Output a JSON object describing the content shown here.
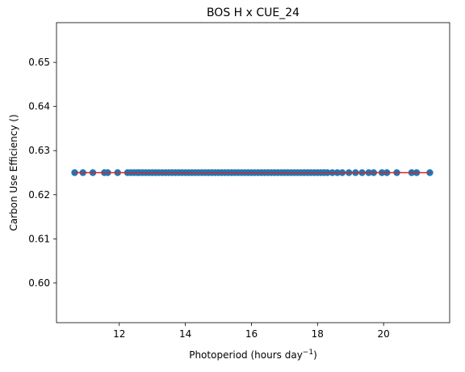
{
  "chart_data": {
    "type": "scatter",
    "title": "BOS H x CUE_24",
    "xlabel_main": "Photoperiod (hours day",
    "xlabel_sup": "−1",
    "xlabel_end": ")",
    "ylabel": "Carbon Use Efficiency ()",
    "xlim": [
      10.1,
      22.0
    ],
    "ylim": [
      0.591,
      0.659
    ],
    "xticks": [
      12,
      14,
      16,
      18,
      20
    ],
    "yticks": [
      0.6,
      0.61,
      0.62,
      0.63,
      0.64,
      0.65
    ],
    "grid": false,
    "legend": "none",
    "colors": {
      "points": "#1f77b4",
      "fit_line": "#d62728"
    },
    "series": [
      {
        "values": [
          [
            10.65,
            0.625
          ],
          [
            10.9,
            0.625
          ],
          [
            11.2,
            0.625
          ],
          [
            11.55,
            0.625
          ],
          [
            11.65,
            0.625
          ],
          [
            11.95,
            0.625
          ],
          [
            12.25,
            0.625
          ],
          [
            12.35,
            0.625
          ],
          [
            12.45,
            0.625
          ],
          [
            12.55,
            0.625
          ],
          [
            12.6,
            0.625
          ],
          [
            12.7,
            0.625
          ],
          [
            12.8,
            0.625
          ],
          [
            12.9,
            0.625
          ],
          [
            13.0,
            0.625
          ],
          [
            13.1,
            0.625
          ],
          [
            13.2,
            0.625
          ],
          [
            13.3,
            0.625
          ],
          [
            13.4,
            0.625
          ],
          [
            13.5,
            0.625
          ],
          [
            13.6,
            0.625
          ],
          [
            13.7,
            0.625
          ],
          [
            13.8,
            0.625
          ],
          [
            13.9,
            0.625
          ],
          [
            14.0,
            0.625
          ],
          [
            14.1,
            0.625
          ],
          [
            14.2,
            0.625
          ],
          [
            14.3,
            0.625
          ],
          [
            14.4,
            0.625
          ],
          [
            14.5,
            0.625
          ],
          [
            14.6,
            0.625
          ],
          [
            14.7,
            0.625
          ],
          [
            14.8,
            0.625
          ],
          [
            14.9,
            0.625
          ],
          [
            15.0,
            0.625
          ],
          [
            15.1,
            0.625
          ],
          [
            15.2,
            0.625
          ],
          [
            15.3,
            0.625
          ],
          [
            15.4,
            0.625
          ],
          [
            15.5,
            0.625
          ],
          [
            15.6,
            0.625
          ],
          [
            15.7,
            0.625
          ],
          [
            15.8,
            0.625
          ],
          [
            15.9,
            0.625
          ],
          [
            16.0,
            0.625
          ],
          [
            16.1,
            0.625
          ],
          [
            16.2,
            0.625
          ],
          [
            16.3,
            0.625
          ],
          [
            16.4,
            0.625
          ],
          [
            16.5,
            0.625
          ],
          [
            16.6,
            0.625
          ],
          [
            16.7,
            0.625
          ],
          [
            16.8,
            0.625
          ],
          [
            16.9,
            0.625
          ],
          [
            17.0,
            0.625
          ],
          [
            17.1,
            0.625
          ],
          [
            17.2,
            0.625
          ],
          [
            17.3,
            0.625
          ],
          [
            17.4,
            0.625
          ],
          [
            17.5,
            0.625
          ],
          [
            17.6,
            0.625
          ],
          [
            17.7,
            0.625
          ],
          [
            17.8,
            0.625
          ],
          [
            17.9,
            0.625
          ],
          [
            18.0,
            0.625
          ],
          [
            18.1,
            0.625
          ],
          [
            18.2,
            0.625
          ],
          [
            18.3,
            0.625
          ],
          [
            18.45,
            0.625
          ],
          [
            18.6,
            0.625
          ],
          [
            18.75,
            0.625
          ],
          [
            18.95,
            0.625
          ],
          [
            19.15,
            0.625
          ],
          [
            19.35,
            0.625
          ],
          [
            19.55,
            0.625
          ],
          [
            19.7,
            0.625
          ],
          [
            19.95,
            0.625
          ],
          [
            20.1,
            0.625
          ],
          [
            20.4,
            0.625
          ],
          [
            20.85,
            0.625
          ],
          [
            21.0,
            0.625
          ],
          [
            21.4,
            0.625
          ]
        ]
      }
    ],
    "fit_line": {
      "x": [
        10.65,
        21.4
      ],
      "y": [
        0.625,
        0.625
      ]
    }
  }
}
